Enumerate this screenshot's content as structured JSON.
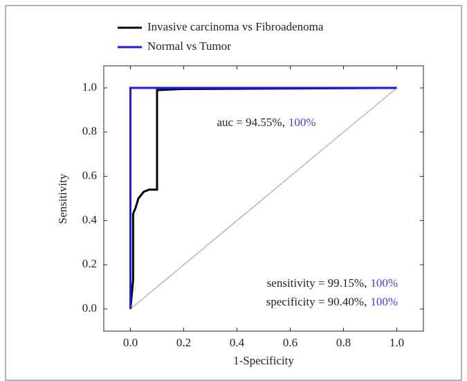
{
  "chart_data": {
    "type": "line",
    "xlabel": "1-Specificity",
    "ylabel": "Sensitivity",
    "xlim": [
      -0.1,
      1.1
    ],
    "ylim": [
      -0.1,
      1.1
    ],
    "xticks": [
      {
        "value": 0,
        "label": "0.0"
      },
      0.2,
      0.4,
      0.6,
      0.8,
      {
        "value": 1,
        "label": "1.0"
      }
    ],
    "yticks": [
      {
        "value": 0,
        "label": "0.0"
      },
      0.2,
      0.4,
      0.6,
      0.8,
      {
        "value": 1,
        "label": "1.0"
      }
    ],
    "legend": "top-left",
    "series": [
      {
        "name": "Invasive carcinoma vs Fibroadenoma",
        "color": "#000000",
        "x": [
          0,
          0.01,
          0.01,
          0.02,
          0.03,
          0.05,
          0.07,
          0.1,
          0.1,
          0.19,
          1
        ],
        "values": [
          0,
          0.13,
          0.43,
          0.46,
          0.5,
          0.53,
          0.54,
          0.54,
          0.99,
          0.995,
          1
        ]
      },
      {
        "name": "Normal vs Tumor",
        "color": "#1a1aff",
        "x": [
          0,
          0,
          1
        ],
        "values": [
          0,
          1,
          1
        ]
      }
    ],
    "reference_line": {
      "x": [
        0,
        1
      ],
      "values": [
        0,
        1
      ],
      "color": "#999999"
    },
    "annotations": [
      {
        "parts": [
          {
            "text": "auc = 94.55%,",
            "color": "#222222"
          },
          {
            "text": "100%",
            "color": "#3f3fd9"
          }
        ]
      },
      {
        "parts": [
          {
            "text": "sensitivity = 99.15%,",
            "color": "#222222"
          },
          {
            "text": "100%",
            "color": "#3f3fd9"
          }
        ]
      },
      {
        "parts": [
          {
            "text": "specificity = 90.40%,",
            "color": "#222222"
          },
          {
            "text": "100%",
            "color": "#3f3fd9"
          }
        ]
      }
    ]
  }
}
